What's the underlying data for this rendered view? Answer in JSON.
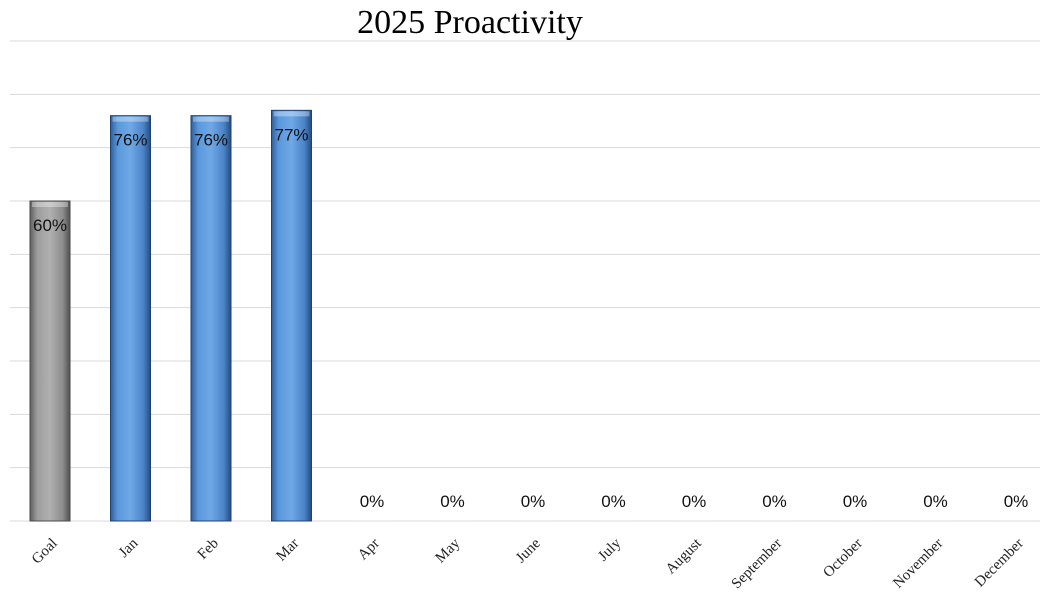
{
  "chart_data": {
    "type": "bar",
    "title": "2025 Proactivity",
    "categories": [
      "Goal",
      "Jan",
      "Feb",
      "Mar",
      "Apr",
      "May",
      "June",
      "July",
      "August",
      "September",
      "October",
      "November",
      "December"
    ],
    "values": [
      60,
      76,
      76,
      77,
      0,
      0,
      0,
      0,
      0,
      0,
      0,
      0,
      0
    ],
    "data_labels": [
      "60%",
      "76%",
      "76%",
      "77%",
      "0%",
      "0%",
      "0%",
      "0%",
      "0%",
      "0%",
      "0%",
      "0%",
      "0%"
    ],
    "unit": "%",
    "ylim": [
      0,
      90
    ],
    "grid": true,
    "y_axis_labels_shown": false,
    "legend": "none",
    "colors": {
      "goal": "#9a9a9a",
      "month": "#4f90d6",
      "grid": "#d9d9d9"
    }
  }
}
